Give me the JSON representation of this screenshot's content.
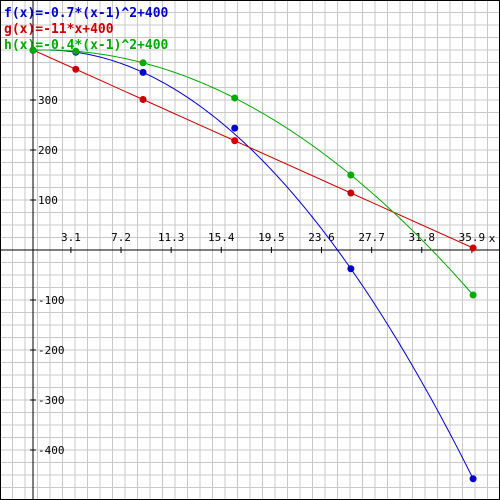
{
  "chart_data": {
    "type": "line",
    "xlabel": "x",
    "ylabel": "",
    "xlim": [
      -2.7,
      38.2
    ],
    "ylim": [
      -500,
      500
    ],
    "grid": true,
    "legend_position": "top-left",
    "x_ticks": [
      3.1,
      7.2,
      11.3,
      15.4,
      19.5,
      23.6,
      27.7,
      31.8,
      35.9
    ],
    "x_tick_labels": [
      "3.1",
      "7.2",
      "11.3",
      "15.4",
      "19.5",
      "23.6",
      "27.7",
      "31.8",
      "35.9"
    ],
    "y_ticks": [
      -400,
      -300,
      -200,
      -100,
      100,
      200,
      300
    ],
    "y_tick_labels": [
      "-400",
      "-300",
      "-200",
      "-100",
      "100",
      "200",
      "300"
    ],
    "series": [
      {
        "name": "f(x)=-0.7*(x-1)^2+400",
        "color": "#0000cc",
        "a": -0.7,
        "h": 1,
        "k": 400,
        "points": [
          {
            "x": 0,
            "y": 399.3
          },
          {
            "x": 3.5,
            "y": 395.6
          },
          {
            "x": 9,
            "y": 355.2
          },
          {
            "x": 16.5,
            "y": 243.8
          },
          {
            "x": 26,
            "y": -37.5
          },
          {
            "x": 36,
            "y": -457.5
          }
        ]
      },
      {
        "name": "g(x)=-11*x+400",
        "color": "#cc0000",
        "points": [
          {
            "x": 0,
            "y": 400
          },
          {
            "x": 3.5,
            "y": 361.5
          },
          {
            "x": 9,
            "y": 301
          },
          {
            "x": 16.5,
            "y": 218.5
          },
          {
            "x": 26,
            "y": 114
          },
          {
            "x": 36,
            "y": 4
          }
        ]
      },
      {
        "name": "h(x)=-0.4*(x-1)^2+400",
        "color": "#00aa00",
        "a": -0.4,
        "h": 1,
        "k": 400,
        "points": [
          {
            "x": 0,
            "y": 399.6
          },
          {
            "x": 3.5,
            "y": 397.5
          },
          {
            "x": 9,
            "y": 374.4
          },
          {
            "x": 16.5,
            "y": 303.9
          },
          {
            "x": 26,
            "y": 150
          },
          {
            "x": 36,
            "y": -90
          }
        ]
      }
    ]
  }
}
